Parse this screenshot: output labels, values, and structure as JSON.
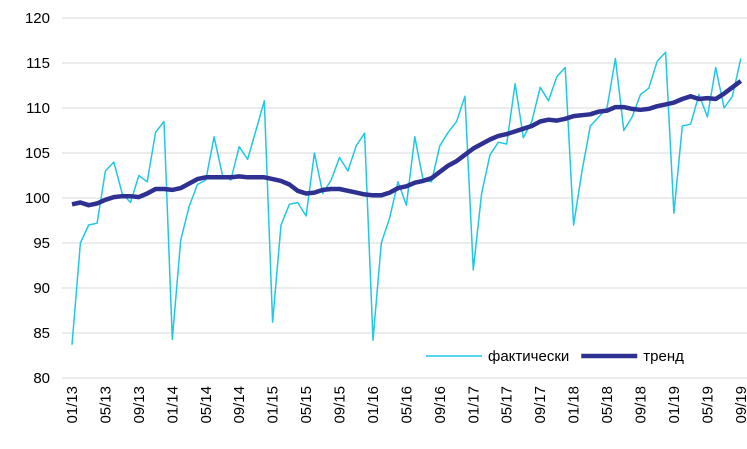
{
  "chart_data": {
    "type": "line",
    "categories": [
      "01/13",
      null,
      null,
      null,
      "05/13",
      null,
      null,
      null,
      "09/13",
      null,
      null,
      null,
      "01/14",
      null,
      null,
      null,
      "05/14",
      null,
      null,
      null,
      "09/14",
      null,
      null,
      null,
      "01/15",
      null,
      null,
      null,
      "05/15",
      null,
      null,
      null,
      "09/15",
      null,
      null,
      null,
      "01/16",
      null,
      null,
      null,
      "05/16",
      null,
      null,
      null,
      "09/16",
      null,
      null,
      null,
      "01/17",
      null,
      null,
      null,
      "05/17",
      null,
      null,
      null,
      "09/17",
      null,
      null,
      null,
      "01/18",
      null,
      null,
      null,
      "05/18",
      null,
      null,
      null,
      "09/18",
      null,
      null,
      null,
      "01/19",
      null,
      null,
      null,
      "05/19",
      null,
      null,
      null,
      "09/19"
    ],
    "series": [
      {
        "name": "фактически",
        "color": "#1fc8e3",
        "width": 1.5,
        "values": [
          83.7,
          95,
          97,
          97.2,
          103,
          104,
          100.5,
          99.5,
          102.5,
          101.8,
          107.3,
          108.5,
          84.3,
          95.3,
          99,
          101.5,
          102,
          106.8,
          102.5,
          102,
          105.7,
          104.3,
          107.5,
          110.8,
          86.2,
          97,
          99.3,
          99.5,
          98,
          105,
          100.5,
          102,
          104.5,
          103,
          105.8,
          107.2,
          84.2,
          95,
          97.8,
          101.8,
          99.2,
          106.8,
          102,
          101.8,
          105.8,
          107.3,
          108.5,
          111.3,
          92,
          100.5,
          104.8,
          106.2,
          106,
          112.7,
          106.7,
          108.5,
          112.3,
          110.8,
          113.5,
          114.5,
          97,
          103,
          108,
          109,
          110,
          115.5,
          107.5,
          109,
          111.5,
          112.2,
          115.2,
          116.2,
          98.3,
          108,
          108.2,
          111.5,
          109,
          114.5,
          110,
          111.3,
          115.5
        ]
      },
      {
        "name": "тренд",
        "color": "#2e3192",
        "width": 4.5,
        "values": [
          99.3,
          99.5,
          99.2,
          99.4,
          99.8,
          100.1,
          100.2,
          100.2,
          100.1,
          100.5,
          101,
          101,
          100.9,
          101.1,
          101.6,
          102.1,
          102.3,
          102.3,
          102.3,
          102.3,
          102.4,
          102.3,
          102.3,
          102.3,
          102.1,
          101.9,
          101.5,
          100.8,
          100.5,
          100.6,
          100.9,
          101,
          101,
          100.8,
          100.6,
          100.4,
          100.3,
          100.3,
          100.6,
          101.1,
          101.3,
          101.7,
          101.9,
          102.2,
          102.9,
          103.6,
          104.1,
          104.8,
          105.5,
          106,
          106.5,
          106.9,
          107.1,
          107.4,
          107.7,
          108,
          108.5,
          108.7,
          108.6,
          108.8,
          109.1,
          109.2,
          109.3,
          109.6,
          109.7,
          110.1,
          110.1,
          109.9,
          109.8,
          109.9,
          110.2,
          110.4,
          110.6,
          111,
          111.3,
          111,
          111.1,
          111,
          111.6,
          112.3,
          113
        ]
      }
    ],
    "ylim": [
      80,
      120
    ],
    "yticks": [
      80,
      85,
      90,
      95,
      100,
      105,
      110,
      115,
      120
    ],
    "grid": true,
    "legend": "lower right"
  }
}
